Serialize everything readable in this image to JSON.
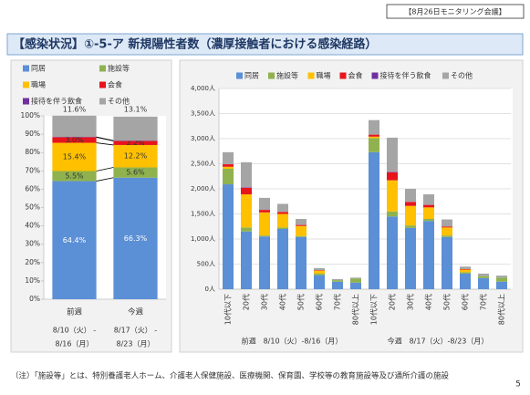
{
  "header_tag": "【8月26日モニタリング会議】",
  "title": "【感染状況】①-5-ア 新規陽性者数（濃厚接触者における感染経路）",
  "chart_data": [
    {
      "type": "stacked_percent_bar",
      "categories": [
        "前週",
        "今週"
      ],
      "category_sublabels": [
        [
          "8/10（火） -",
          "8/16（月）"
        ],
        [
          "8/17（火） -",
          "8/23（月）"
        ]
      ],
      "series": [
        {
          "name": "同居",
          "color": "#5b8fd6",
          "values": [
            64.4,
            66.3
          ],
          "value_labels": [
            "64.4%",
            "66.3%"
          ]
        },
        {
          "name": "施設等",
          "color": "#8fb24e",
          "values": [
            5.5,
            5.6
          ],
          "value_labels": [
            "5.5%",
            "5.6%"
          ]
        },
        {
          "name": "職場",
          "color": "#ffc000",
          "values": [
            15.4,
            12.2
          ],
          "value_labels": [
            "15.4%",
            "12.2%"
          ]
        },
        {
          "name": "会食",
          "color": "#e8141c",
          "values": [
            3.0,
            2.2
          ],
          "value_labels": [
            "3.0%",
            "2.2%"
          ]
        },
        {
          "name": "接待を伴う飲食",
          "color": "#7030a0",
          "values": [
            0.2,
            0.2
          ],
          "value_labels": [
            "0.2%",
            "0.2%"
          ]
        },
        {
          "name": "その他",
          "color": "#a5a5a5",
          "values": [
            11.6,
            13.1
          ],
          "value_labels": [
            "11.6%",
            "13.1%"
          ]
        }
      ],
      "ylim": [
        0,
        100
      ],
      "yticks": [
        {
          "value": 0,
          "label": "0%"
        },
        {
          "value": 10,
          "label": "10%"
        },
        {
          "value": 20,
          "label": "20%"
        },
        {
          "value": 30,
          "label": "30%"
        },
        {
          "value": 40,
          "label": "40%"
        },
        {
          "value": 50,
          "label": "50%"
        },
        {
          "value": 60,
          "label": "60%"
        },
        {
          "value": 70,
          "label": "70%"
        },
        {
          "value": 80,
          "label": "80%"
        },
        {
          "value": 90,
          "label": "90%"
        },
        {
          "value": 100,
          "label": "100%"
        }
      ],
      "grid": false
    },
    {
      "type": "stacked_bar",
      "categories": [
        "10代以下",
        "20代",
        "30代",
        "40代",
        "50代",
        "60代",
        "70代",
        "80代以上",
        "10代以下",
        "20代",
        "30代",
        "40代",
        "50代",
        "60代",
        "70代",
        "80代以上"
      ],
      "groups": [
        "前週　8/10（火）-8/16（月）",
        "今週　8/17（火）-8/23（月）"
      ],
      "series": [
        {
          "name": "同居",
          "color": "#5b8fd6",
          "values": [
            2090,
            1150,
            1050,
            1200,
            1040,
            280,
            150,
            130,
            2730,
            1450,
            1220,
            1360,
            1040,
            310,
            220,
            150
          ]
        },
        {
          "name": "施設等",
          "color": "#8fb24e",
          "values": [
            310,
            80,
            20,
            30,
            20,
            30,
            30,
            80,
            280,
            100,
            50,
            40,
            30,
            30,
            40,
            80
          ]
        },
        {
          "name": "職場",
          "color": "#ffc000",
          "values": [
            40,
            660,
            460,
            270,
            200,
            60,
            0,
            0,
            30,
            620,
            390,
            230,
            160,
            50,
            0,
            0
          ]
        },
        {
          "name": "会食",
          "color": "#e8141c",
          "values": [
            50,
            130,
            50,
            40,
            20,
            10,
            0,
            0,
            40,
            160,
            80,
            50,
            20,
            10,
            0,
            0
          ]
        },
        {
          "name": "接待を伴う飲食",
          "color": "#7030a0",
          "values": [
            0,
            10,
            0,
            0,
            0,
            0,
            0,
            0,
            0,
            10,
            0,
            0,
            0,
            0,
            0,
            0
          ]
        },
        {
          "name": "その他",
          "color": "#a5a5a5",
          "values": [
            240,
            500,
            240,
            160,
            120,
            40,
            20,
            20,
            290,
            680,
            260,
            210,
            140,
            50,
            50,
            40
          ]
        }
      ],
      "ylim": [
        0,
        4000
      ],
      "yticks": [
        {
          "value": 0,
          "label": "0人"
        },
        {
          "value": 500,
          "label": "500人"
        },
        {
          "value": 1000,
          "label": "1,000人"
        },
        {
          "value": 1500,
          "label": "1,500人"
        },
        {
          "value": 2000,
          "label": "2,000人"
        },
        {
          "value": 2500,
          "label": "2,500人"
        },
        {
          "value": 3000,
          "label": "3,000人"
        },
        {
          "value": 3500,
          "label": "3,500人"
        },
        {
          "value": 4000,
          "label": "4,000人"
        }
      ],
      "grid": true
    }
  ],
  "footnote": "（注）「施設等」とは、特別養護老人ホーム、介護老人保健施設、医療機関、保育園、学校等の教育施設等及び通所介護の施設",
  "page_number": "5"
}
